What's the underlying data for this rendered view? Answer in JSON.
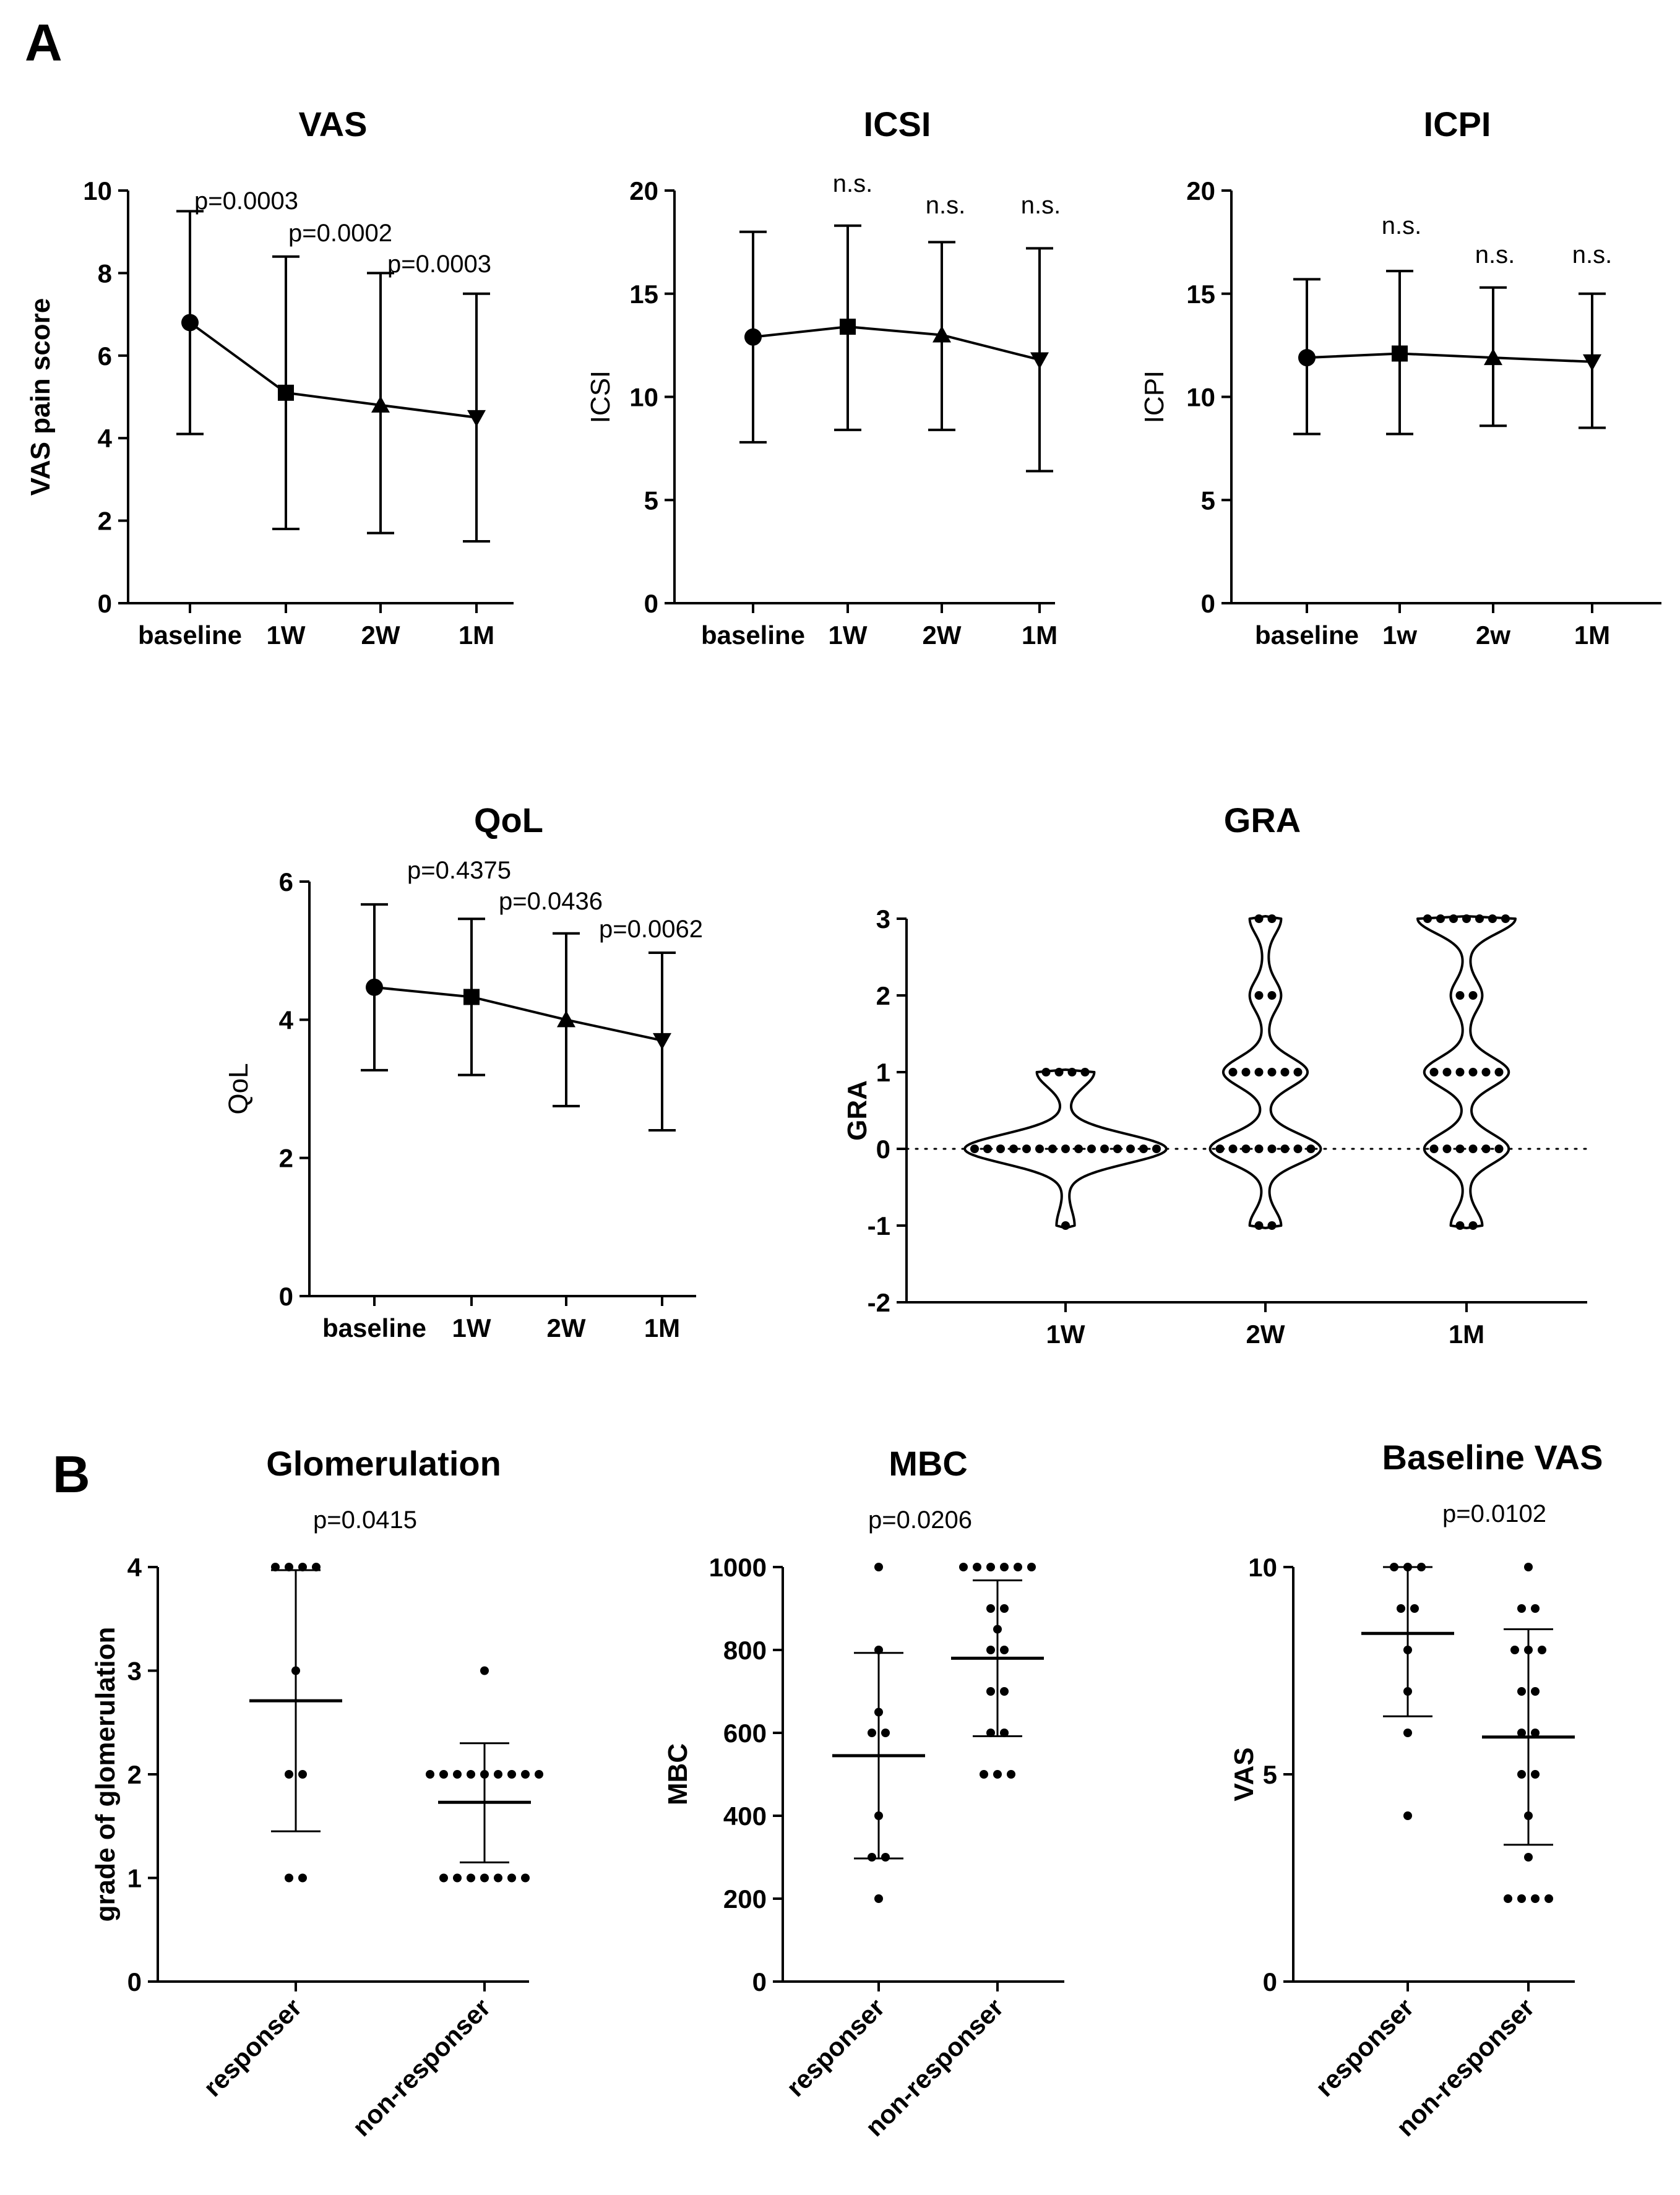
{
  "panels": [
    {
      "label": "A"
    },
    {
      "label": "B"
    }
  ],
  "chart_data": [
    {
      "id": "vas",
      "type": "line",
      "title": "VAS",
      "ylabel": "VAS pain score",
      "ylabel_bold": true,
      "categories": [
        "baseline",
        "1W",
        "2W",
        "1M"
      ],
      "values": [
        6.8,
        5.1,
        4.8,
        4.5
      ],
      "error": [
        [
          4.1,
          9.5
        ],
        [
          1.8,
          8.4
        ],
        [
          1.7,
          8.0
        ],
        [
          1.5,
          7.5
        ]
      ],
      "markers": [
        "circle",
        "square",
        "triangle-up",
        "triangle-down"
      ],
      "ylim": [
        0,
        10
      ],
      "yticks": [
        0,
        2,
        4,
        6,
        8,
        10
      ],
      "annotations": [
        "",
        "p=0.0003",
        "p=0.0002",
        "p=0.0003"
      ]
    },
    {
      "id": "icsi",
      "type": "line",
      "title": "ICSI",
      "ylabel": "ICSI",
      "ylabel_bold": false,
      "categories": [
        "baseline",
        "1W",
        "2W",
        "1M"
      ],
      "values": [
        12.9,
        13.4,
        13.0,
        11.8
      ],
      "error": [
        [
          7.8,
          18.0
        ],
        [
          8.4,
          18.3
        ],
        [
          8.4,
          17.5
        ],
        [
          6.4,
          17.2
        ]
      ],
      "markers": [
        "circle",
        "square",
        "triangle-up",
        "triangle-down"
      ],
      "ylim": [
        0,
        20
      ],
      "yticks": [
        0,
        5,
        10,
        15,
        20
      ],
      "annotations": [
        "",
        "n.s.",
        "n.s.",
        "n.s."
      ]
    },
    {
      "id": "icpi",
      "type": "line",
      "title": "ICPI",
      "ylabel": "ICPI",
      "ylabel_bold": false,
      "categories": [
        "baseline",
        "1w",
        "2w",
        "1M"
      ],
      "values": [
        11.9,
        12.1,
        11.9,
        11.7
      ],
      "error": [
        [
          8.2,
          15.7
        ],
        [
          8.2,
          16.1
        ],
        [
          8.6,
          15.3
        ],
        [
          8.5,
          15.0
        ]
      ],
      "markers": [
        "circle",
        "square",
        "triangle-up",
        "triangle-down"
      ],
      "ylim": [
        0,
        20
      ],
      "yticks": [
        0,
        5,
        10,
        15,
        20
      ],
      "annotations": [
        "",
        "n.s.",
        "n.s.",
        "n.s."
      ]
    },
    {
      "id": "qol",
      "type": "line",
      "title": "QoL",
      "ylabel": "QoL",
      "ylabel_bold": false,
      "categories": [
        "baseline",
        "1W",
        "2W",
        "1M"
      ],
      "values": [
        4.47,
        4.33,
        4.0,
        3.7
      ],
      "error": [
        [
          3.27,
          5.67
        ],
        [
          3.2,
          5.46
        ],
        [
          2.75,
          5.25
        ],
        [
          2.4,
          4.97
        ]
      ],
      "markers": [
        "circle",
        "square",
        "triangle-up",
        "triangle-down"
      ],
      "ylim": [
        0,
        6
      ],
      "yticks": [
        0,
        2,
        4,
        6
      ],
      "annotations": [
        "",
        "p=0.4375",
        "p=0.0436",
        "p=0.0062"
      ]
    },
    {
      "id": "gra",
      "type": "violin",
      "title": "GRA",
      "ylabel": "GRA",
      "ylabel_bold": true,
      "categories": [
        "1W",
        "2W",
        "1M"
      ],
      "ylim": [
        -2,
        3
      ],
      "yticks": [
        -2,
        -1,
        0,
        1,
        2,
        3
      ],
      "reference_line": 0,
      "groups": [
        {
          "points": [
            {
              "y": 1,
              "n": 4
            },
            {
              "y": 0,
              "n": 15
            },
            {
              "y": -1,
              "n": 1
            }
          ]
        },
        {
          "points": [
            {
              "y": 3,
              "n": 2
            },
            {
              "y": 2,
              "n": 2
            },
            {
              "y": 1,
              "n": 6
            },
            {
              "y": 0,
              "n": 8
            },
            {
              "y": -1,
              "n": 2
            }
          ]
        },
        {
          "points": [
            {
              "y": 3,
              "n": 7
            },
            {
              "y": 2,
              "n": 2
            },
            {
              "y": 1,
              "n": 6
            },
            {
              "y": 0,
              "n": 6
            },
            {
              "y": -1,
              "n": 2
            }
          ]
        }
      ]
    },
    {
      "id": "glom",
      "type": "scatter",
      "title": "Glomerulation",
      "ylabel": "grade of glomerulation",
      "ylabel_bold": true,
      "categories": [
        "responser",
        "non-responser"
      ],
      "ylim": [
        0,
        4
      ],
      "yticks": [
        0,
        1,
        2,
        3,
        4
      ],
      "p_value": "p=0.0415",
      "groups": [
        {
          "points": [
            {
              "y": 4,
              "n": 4
            },
            {
              "y": 3,
              "n": 1
            },
            {
              "y": 2,
              "n": 2
            },
            {
              "y": 1,
              "n": 2
            }
          ],
          "mean": 2.71,
          "sd": [
            1.45,
            3.97
          ]
        },
        {
          "points": [
            {
              "y": 3,
              "n": 1
            },
            {
              "y": 2,
              "n": 9
            },
            {
              "y": 1,
              "n": 7
            }
          ],
          "mean": 1.73,
          "sd": [
            1.15,
            2.3
          ]
        }
      ]
    },
    {
      "id": "mbc",
      "type": "scatter",
      "title": "MBC",
      "ylabel": "MBC",
      "ylabel_bold": true,
      "categories": [
        "responser",
        "non-responser"
      ],
      "ylim": [
        0,
        1000
      ],
      "yticks": [
        0,
        200,
        400,
        600,
        800,
        1000
      ],
      "p_value": "p=0.0206",
      "groups": [
        {
          "points": [
            {
              "y": 1000,
              "n": 1
            },
            {
              "y": 800,
              "n": 1
            },
            {
              "y": 650,
              "n": 1
            },
            {
              "y": 600,
              "n": 2
            },
            {
              "y": 400,
              "n": 1
            },
            {
              "y": 300,
              "n": 2
            },
            {
              "y": 200,
              "n": 1
            }
          ],
          "mean": 545,
          "sd": [
            297,
            793
          ]
        },
        {
          "points": [
            {
              "y": 1000,
              "n": 6
            },
            {
              "y": 900,
              "n": 2
            },
            {
              "y": 850,
              "n": 1
            },
            {
              "y": 800,
              "n": 2
            },
            {
              "y": 700,
              "n": 2
            },
            {
              "y": 600,
              "n": 2
            },
            {
              "y": 500,
              "n": 3
            }
          ],
          "mean": 780,
          "sd": [
            592,
            968
          ]
        }
      ]
    },
    {
      "id": "bvas",
      "type": "scatter",
      "title": "Baseline VAS",
      "ylabel": "VAS",
      "ylabel_bold": true,
      "categories": [
        "responser",
        "non-responser"
      ],
      "ylim": [
        0,
        10
      ],
      "yticks": [
        0,
        5,
        10
      ],
      "p_value": "p=0.0102",
      "groups": [
        {
          "points": [
            {
              "y": 10,
              "n": 3
            },
            {
              "y": 9,
              "n": 2
            },
            {
              "y": 8,
              "n": 1
            },
            {
              "y": 7,
              "n": 1
            },
            {
              "y": 6,
              "n": 1
            },
            {
              "y": 4,
              "n": 1
            }
          ],
          "mean": 8.4,
          "sd": [
            6.4,
            10.0
          ]
        },
        {
          "points": [
            {
              "y": 10,
              "n": 1
            },
            {
              "y": 9,
              "n": 2
            },
            {
              "y": 8,
              "n": 3
            },
            {
              "y": 7,
              "n": 2
            },
            {
              "y": 6,
              "n": 2
            },
            {
              "y": 5,
              "n": 2
            },
            {
              "y": 4,
              "n": 1
            },
            {
              "y": 3,
              "n": 1
            },
            {
              "y": 2,
              "n": 4
            }
          ],
          "mean": 5.9,
          "sd": [
            3.3,
            8.5
          ]
        }
      ]
    }
  ]
}
